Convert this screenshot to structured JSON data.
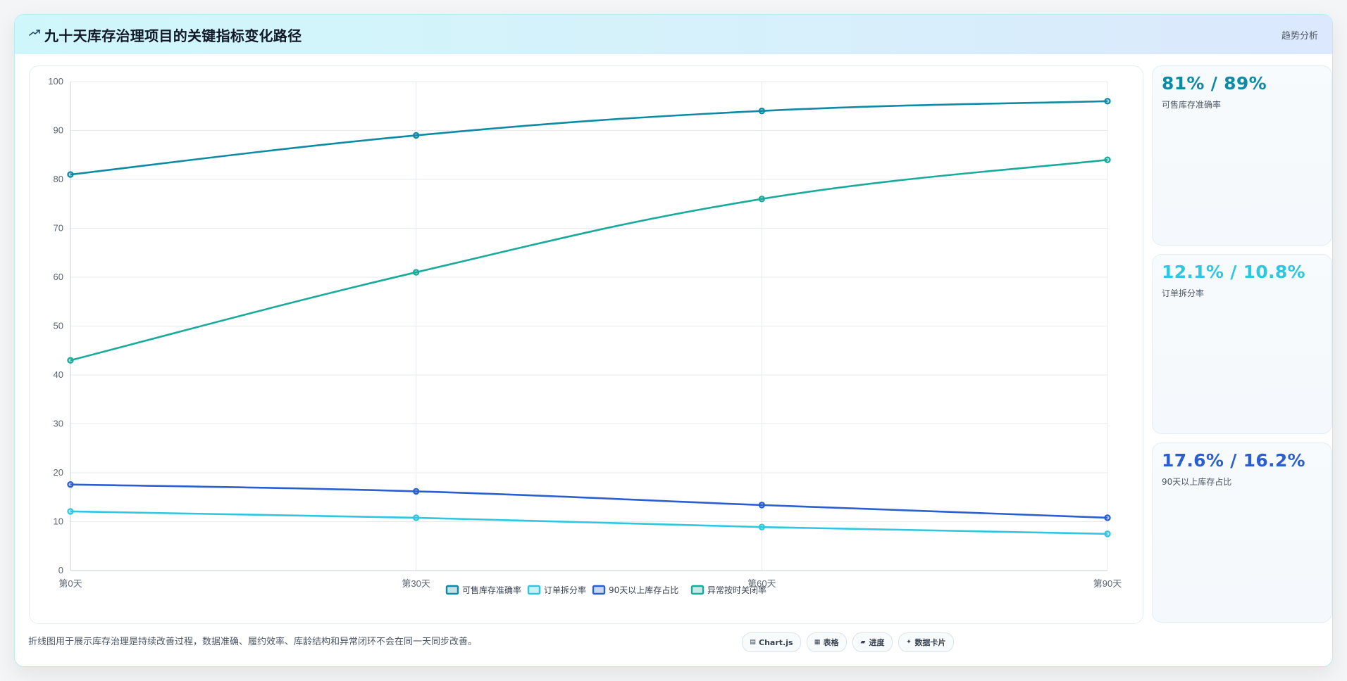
{
  "header": {
    "icon": "trend-line-icon",
    "title": "九十天库存治理项目的关键指标变化路径",
    "tag": "趋势分析"
  },
  "kpis": [
    {
      "value": "81% / 89%",
      "label": "可售库存准确率",
      "color": "#0e8aa5"
    },
    {
      "value": "12.1% / 10.8%",
      "label": "订单拆分率",
      "color": "#2ec6e0"
    },
    {
      "value": "17.6% / 16.2%",
      "label": "90天以上库存占比",
      "color": "#2b5fd0"
    }
  ],
  "footer": {
    "note": "折线图用于展示库存治理是持续改善过程，数据准确、履约效率、库龄结构和异常闭环不会在同一天同步改善。",
    "pills": [
      {
        "icon": "chart-icon",
        "label": "Chart.js"
      },
      {
        "icon": "table-icon",
        "label": "表格"
      },
      {
        "icon": "progress-icon",
        "label": "进度"
      },
      {
        "icon": "card-icon",
        "label": "数据卡片"
      }
    ]
  },
  "chart_data": {
    "type": "line",
    "categories": [
      "第0天",
      "第30天",
      "第60天",
      "第90天"
    ],
    "ylim": [
      0,
      100
    ],
    "yticks": [
      0,
      10,
      20,
      30,
      40,
      50,
      60,
      70,
      80,
      90,
      100
    ],
    "grid": true,
    "legend_position": "bottom",
    "series": [
      {
        "name": "可售库存准确率",
        "values": [
          81,
          89,
          94,
          96
        ],
        "color": "#0e8aa5"
      },
      {
        "name": "订单拆分率",
        "values": [
          12.1,
          10.8,
          8.9,
          7.5
        ],
        "color": "#2ec6e0"
      },
      {
        "name": "90天以上库存占比",
        "values": [
          17.6,
          16.2,
          13.4,
          10.8
        ],
        "color": "#2b5fd0"
      },
      {
        "name": "异常按时关闭率",
        "values": [
          43,
          61,
          76,
          84
        ],
        "color": "#1aaa9c"
      }
    ]
  }
}
